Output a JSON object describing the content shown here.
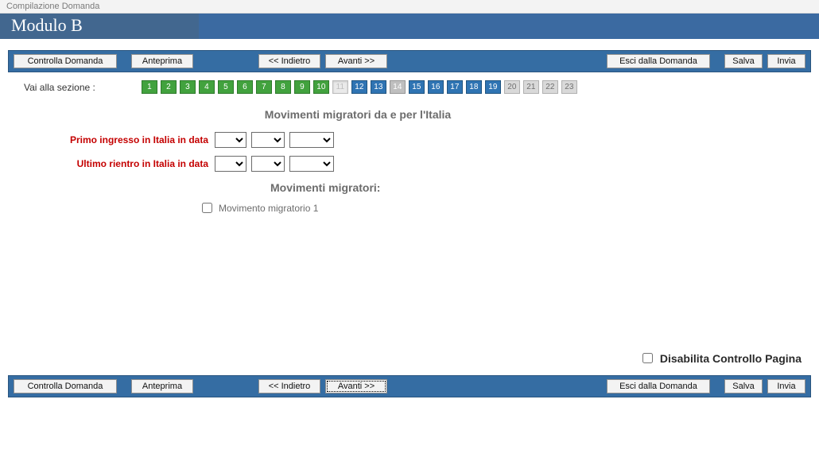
{
  "page_title": "Compilazione Domanda",
  "module_title": "Modulo B",
  "colors": {
    "header_bar": "#3b6aa1",
    "header_tab": "#42678f",
    "toolbar": "#356da3",
    "section_done": "#42a23e",
    "section_next": "#2f74b3",
    "section_current_bg": "#eaeaea",
    "section_pending": "#d9d9d9",
    "section_alt": "#bfbfbf",
    "required_label": "#c40000",
    "heading_gray": "#6c6c6c"
  },
  "toolbar": {
    "controlla": "Controlla Domanda",
    "anteprima": "Anteprima",
    "indietro": "<< Indietro",
    "avanti": "Avanti >>",
    "esci": "Esci dalla Domanda",
    "salva": "Salva",
    "invia": "Invia"
  },
  "nav": {
    "label": "Vai alla sezione :",
    "current": 11,
    "items": [
      {
        "n": "1",
        "state": "done"
      },
      {
        "n": "2",
        "state": "done"
      },
      {
        "n": "3",
        "state": "done"
      },
      {
        "n": "4",
        "state": "done"
      },
      {
        "n": "5",
        "state": "done"
      },
      {
        "n": "6",
        "state": "done"
      },
      {
        "n": "7",
        "state": "done"
      },
      {
        "n": "8",
        "state": "done"
      },
      {
        "n": "9",
        "state": "done"
      },
      {
        "n": "10",
        "state": "done"
      },
      {
        "n": "11",
        "state": "current"
      },
      {
        "n": "12",
        "state": "next"
      },
      {
        "n": "13",
        "state": "next"
      },
      {
        "n": "14",
        "state": "alt"
      },
      {
        "n": "15",
        "state": "next"
      },
      {
        "n": "16",
        "state": "next"
      },
      {
        "n": "17",
        "state": "next"
      },
      {
        "n": "18",
        "state": "next"
      },
      {
        "n": "19",
        "state": "next"
      },
      {
        "n": "20",
        "state": "pending"
      },
      {
        "n": "21",
        "state": "pending"
      },
      {
        "n": "22",
        "state": "pending"
      },
      {
        "n": "23",
        "state": "pending"
      }
    ]
  },
  "section": {
    "heading": "Movimenti migratori da e per l'Italia",
    "field1_label": "Primo ingresso in Italia in data",
    "field2_label": "Ultimo rientro in Italia in data",
    "first_entry": {
      "day": "",
      "month": "",
      "year": ""
    },
    "last_return": {
      "day": "",
      "month": "",
      "year": ""
    },
    "sub_heading": "Movimenti migratori:",
    "movement1_label": "Movimento migratorio 1",
    "movement1_checked": false
  },
  "disable_check": {
    "label": "Disabilita Controllo Pagina",
    "checked": false
  }
}
